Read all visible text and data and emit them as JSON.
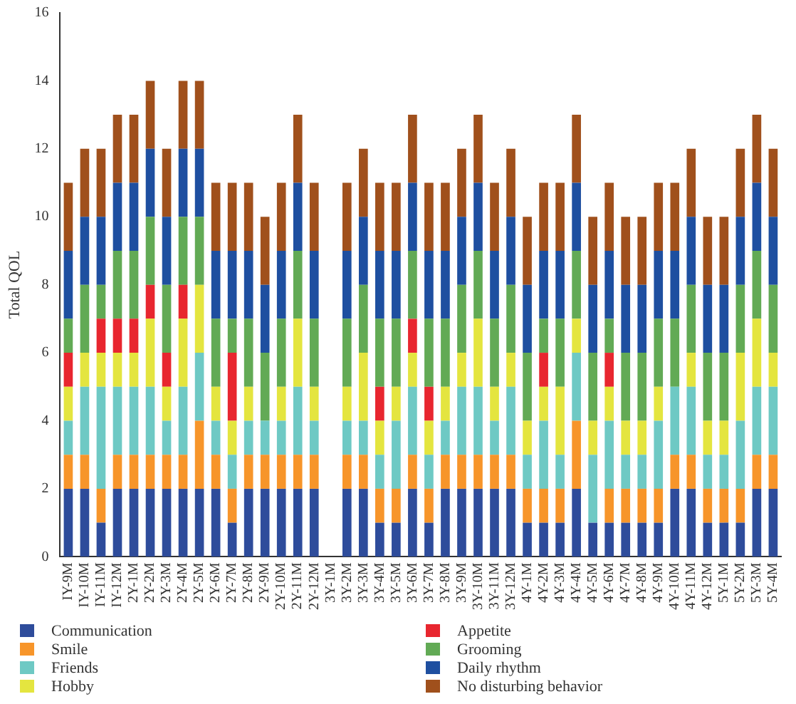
{
  "chart_data": {
    "type": "bar",
    "stacked": true,
    "ylabel": "Total QOL",
    "ylim": [
      0,
      16
    ],
    "yticks": [
      0,
      2,
      4,
      6,
      8,
      10,
      12,
      14,
      16
    ],
    "grid": false,
    "legend": "bottom",
    "categories": [
      "IY-9M",
      "IY-10M",
      "IY-11M",
      "IY-12M",
      "2Y-1M",
      "2Y-2M",
      "2Y-3M",
      "2Y-4M",
      "2Y-5M",
      "2Y-6M",
      "2Y-7M",
      "2Y-8M",
      "2Y-9M",
      "2Y-10M",
      "2Y-11M",
      "2Y-12M",
      "3Y-1M",
      "3Y-2M",
      "3Y-3M",
      "3Y-4M",
      "3Y-5M",
      "3Y-6M",
      "3Y-7M",
      "3Y-8M",
      "3Y-9M",
      "3Y-10M",
      "3Y-11M",
      "3Y-12M",
      "4Y-1M",
      "4Y-2M",
      "4Y-3M",
      "4Y-4M",
      "4Y-5M",
      "4Y-6M",
      "4Y-7M",
      "4Y-8M",
      "4Y-9M",
      "4Y-10M",
      "4Y-11M",
      "4Y-12M",
      "5Y-1M",
      "5Y-2M",
      "5Y-3M",
      "5Y-4M"
    ],
    "series": [
      {
        "name": "Communication",
        "color": "#2e4c9b",
        "values": [
          2,
          2,
          1,
          2,
          2,
          2,
          2,
          2,
          2,
          2,
          1,
          2,
          2,
          2,
          2,
          2,
          null,
          2,
          2,
          1,
          1,
          2,
          1,
          2,
          2,
          2,
          2,
          2,
          1,
          1,
          1,
          2,
          1,
          1,
          1,
          1,
          1,
          2,
          2,
          1,
          1,
          1,
          2,
          2
        ]
      },
      {
        "name": "Smile",
        "color": "#f7952a",
        "values": [
          1,
          1,
          1,
          1,
          1,
          1,
          1,
          1,
          2,
          1,
          1,
          1,
          1,
          1,
          1,
          1,
          null,
          1,
          1,
          1,
          1,
          1,
          1,
          1,
          1,
          1,
          1,
          1,
          1,
          1,
          1,
          2,
          0,
          1,
          1,
          1,
          1,
          1,
          1,
          1,
          1,
          1,
          1,
          1
        ]
      },
      {
        "name": "Friends",
        "color": "#6ec9c4",
        "values": [
          1,
          2,
          3,
          2,
          2,
          2,
          1,
          2,
          2,
          1,
          1,
          1,
          1,
          1,
          2,
          1,
          null,
          1,
          1,
          1,
          2,
          2,
          1,
          1,
          2,
          2,
          1,
          2,
          1,
          2,
          1,
          2,
          2,
          2,
          1,
          1,
          2,
          2,
          2,
          1,
          1,
          2,
          2,
          2
        ]
      },
      {
        "name": "Hobby",
        "color": "#e4e53f",
        "values": [
          1,
          1,
          1,
          1,
          1,
          2,
          1,
          2,
          2,
          1,
          1,
          1,
          0,
          1,
          2,
          1,
          null,
          1,
          2,
          1,
          1,
          1,
          1,
          1,
          1,
          2,
          1,
          1,
          1,
          1,
          2,
          1,
          1,
          1,
          1,
          1,
          1,
          0,
          1,
          1,
          1,
          2,
          2,
          1
        ]
      },
      {
        "name": "Appetite",
        "color": "#e8262f",
        "values": [
          1,
          0,
          1,
          1,
          1,
          1,
          1,
          1,
          0,
          0,
          2,
          0,
          0,
          0,
          0,
          0,
          null,
          0,
          0,
          1,
          0,
          1,
          1,
          0,
          0,
          0,
          0,
          0,
          0,
          1,
          0,
          0,
          0,
          1,
          0,
          0,
          0,
          0,
          0,
          0,
          0,
          0,
          0,
          0
        ]
      },
      {
        "name": "Grooming",
        "color": "#62aa55",
        "values": [
          1,
          2,
          1,
          2,
          2,
          2,
          2,
          2,
          2,
          2,
          1,
          2,
          2,
          2,
          2,
          2,
          null,
          2,
          2,
          2,
          2,
          2,
          2,
          2,
          2,
          2,
          2,
          2,
          2,
          1,
          2,
          2,
          2,
          1,
          2,
          2,
          2,
          2,
          2,
          2,
          2,
          2,
          2,
          2
        ]
      },
      {
        "name": "Daily rhythm",
        "color": "#1e4fa0",
        "values": [
          2,
          2,
          2,
          2,
          2,
          2,
          2,
          2,
          2,
          2,
          2,
          2,
          2,
          2,
          2,
          2,
          null,
          2,
          2,
          2,
          2,
          2,
          2,
          2,
          2,
          2,
          2,
          2,
          2,
          2,
          2,
          2,
          2,
          2,
          2,
          2,
          2,
          2,
          2,
          2,
          2,
          2,
          2,
          2
        ]
      },
      {
        "name": "No disturbing behavior",
        "color": "#a0501c",
        "values": [
          2,
          2,
          2,
          2,
          2,
          2,
          2,
          2,
          2,
          2,
          2,
          2,
          2,
          2,
          2,
          2,
          null,
          2,
          2,
          2,
          2,
          2,
          2,
          2,
          2,
          2,
          2,
          2,
          2,
          2,
          2,
          2,
          2,
          2,
          2,
          2,
          2,
          2,
          2,
          2,
          2,
          2,
          2,
          2
        ]
      }
    ]
  }
}
